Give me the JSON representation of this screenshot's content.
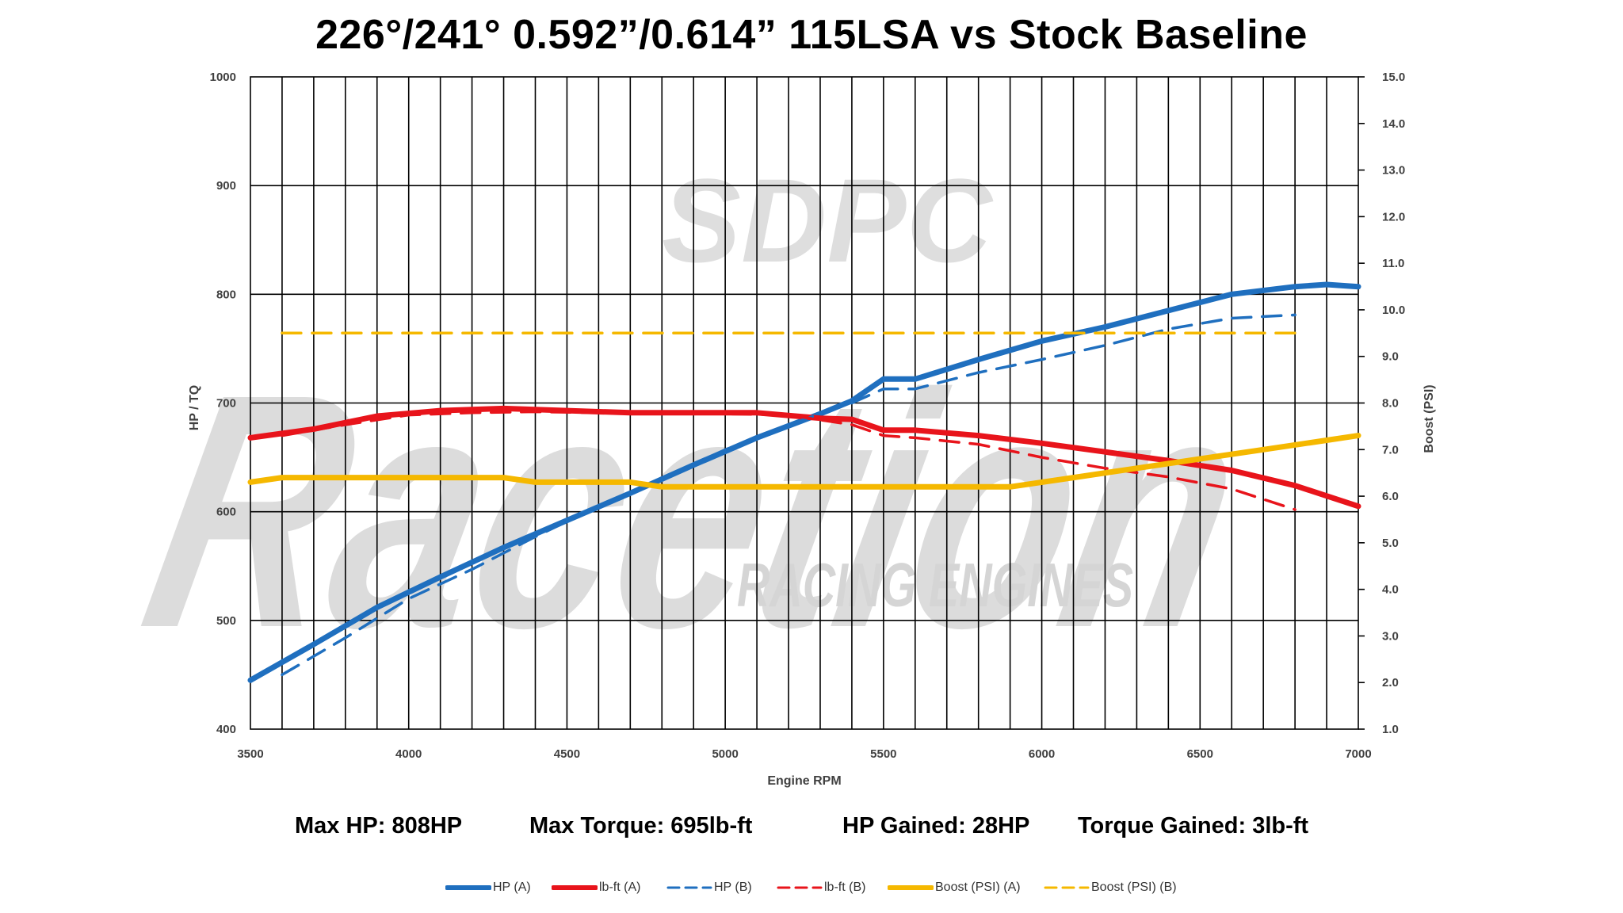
{
  "chart_data": {
    "type": "line",
    "title": "226°/241° 0.592”/0.614” 115LSA vs Stock Baseline",
    "xlabel": "Engine RPM",
    "ylabel": "HP / TQ",
    "y2label": "Boost (PSI)",
    "xlim": [
      3500,
      7000
    ],
    "ylim": [
      400,
      1000
    ],
    "y2lim": [
      1.0,
      15.0
    ],
    "x_ticks": [
      "3500",
      "4000",
      "4500",
      "5000",
      "5500",
      "6000",
      "6500",
      "7000"
    ],
    "y_ticks": [
      "400",
      "500",
      "600",
      "700",
      "800",
      "900",
      "1000"
    ],
    "y2_ticks": [
      "1.0",
      "2.0",
      "3.0",
      "4.0",
      "5.0",
      "6.0",
      "7.0",
      "8.0",
      "9.0",
      "10.0",
      "11.0",
      "12.0",
      "13.0",
      "14.0",
      "15.0"
    ],
    "grid": true,
    "legend_position": "bottom",
    "series": [
      {
        "name": "HP (A)",
        "axis": "left",
        "color": "#1f6fbf",
        "style": "solid",
        "points": [
          [
            3500,
            445
          ],
          [
            3700,
            478
          ],
          [
            3900,
            512
          ],
          [
            4100,
            540
          ],
          [
            4300,
            567
          ],
          [
            4500,
            592
          ],
          [
            4700,
            617
          ],
          [
            4900,
            643
          ],
          [
            5100,
            668
          ],
          [
            5300,
            690
          ],
          [
            5400,
            702
          ],
          [
            5500,
            722
          ],
          [
            5600,
            722
          ],
          [
            5800,
            740
          ],
          [
            6000,
            757
          ],
          [
            6200,
            770
          ],
          [
            6400,
            785
          ],
          [
            6600,
            800
          ],
          [
            6800,
            807
          ],
          [
            6900,
            809
          ],
          [
            7000,
            807
          ]
        ]
      },
      {
        "name": "lb-ft (A)",
        "axis": "left",
        "color": "#e8141b",
        "style": "solid",
        "points": [
          [
            3500,
            668
          ],
          [
            3700,
            676
          ],
          [
            3900,
            688
          ],
          [
            4100,
            693
          ],
          [
            4300,
            695
          ],
          [
            4500,
            693
          ],
          [
            4700,
            691
          ],
          [
            4900,
            691
          ],
          [
            5100,
            691
          ],
          [
            5300,
            686
          ],
          [
            5400,
            685
          ],
          [
            5500,
            675
          ],
          [
            5600,
            675
          ],
          [
            5800,
            670
          ],
          [
            6000,
            663
          ],
          [
            6200,
            655
          ],
          [
            6400,
            647
          ],
          [
            6600,
            638
          ],
          [
            6800,
            624
          ],
          [
            7000,
            605
          ]
        ]
      },
      {
        "name": "HP (B)",
        "axis": "left",
        "color": "#1f6fbf",
        "style": "dashed",
        "points": [
          [
            3600,
            450
          ],
          [
            3800,
            484
          ],
          [
            4000,
            520
          ],
          [
            4200,
            547
          ],
          [
            4400,
            577
          ],
          [
            4600,
            605
          ],
          [
            4800,
            630
          ],
          [
            5000,
            657
          ],
          [
            5200,
            680
          ],
          [
            5400,
            700
          ],
          [
            5500,
            713
          ],
          [
            5600,
            713
          ],
          [
            5800,
            728
          ],
          [
            6000,
            740
          ],
          [
            6200,
            753
          ],
          [
            6400,
            768
          ],
          [
            6600,
            778
          ],
          [
            6800,
            781
          ]
        ]
      },
      {
        "name": "lb-ft (B)",
        "axis": "left",
        "color": "#e8141b",
        "style": "dashed",
        "points": [
          [
            3600,
            670
          ],
          [
            3800,
            680
          ],
          [
            4000,
            689
          ],
          [
            4200,
            691
          ],
          [
            4400,
            692
          ],
          [
            4600,
            691
          ],
          [
            4800,
            691
          ],
          [
            5000,
            690
          ],
          [
            5200,
            689
          ],
          [
            5400,
            680
          ],
          [
            5500,
            670
          ],
          [
            5600,
            668
          ],
          [
            5800,
            662
          ],
          [
            6000,
            650
          ],
          [
            6200,
            640
          ],
          [
            6400,
            632
          ],
          [
            6600,
            621
          ],
          [
            6800,
            602
          ]
        ]
      },
      {
        "name": "Boost (PSI) (A)",
        "axis": "right",
        "color": "#f5b800",
        "style": "solid",
        "points": [
          [
            3500,
            6.3
          ],
          [
            3600,
            6.4
          ],
          [
            4300,
            6.4
          ],
          [
            4400,
            6.3
          ],
          [
            4700,
            6.3
          ],
          [
            4800,
            6.2
          ],
          [
            5900,
            6.2
          ],
          [
            6100,
            6.4
          ],
          [
            6300,
            6.6
          ],
          [
            6500,
            6.8
          ],
          [
            6700,
            7.0
          ],
          [
            6900,
            7.2
          ],
          [
            7000,
            7.3
          ]
        ]
      },
      {
        "name": "Boost (PSI) (B)",
        "axis": "right",
        "color": "#f5b800",
        "style": "dashed",
        "points": [
          [
            3600,
            9.5
          ],
          [
            6800,
            9.5
          ]
        ]
      }
    ]
  },
  "stats": {
    "max_hp": "Max HP: 808HP",
    "max_torque": "Max Torque: 695lb-ft",
    "hp_gained": "HP Gained: 28HP",
    "torque_gained": "Torque Gained: 3lb-ft"
  },
  "watermark": {
    "brand": "SDPC",
    "name": "Racetion",
    "tagline": "RACING ENGINES",
    "color": "#d9d9d9"
  }
}
